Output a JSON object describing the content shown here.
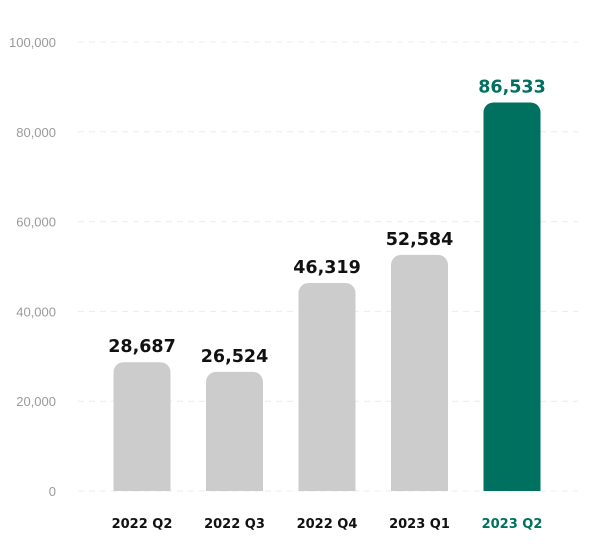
{
  "chart_data": {
    "type": "bar",
    "title": "",
    "xlabel": "",
    "ylabel": "",
    "categories": [
      "2022 Q2",
      "2022 Q3",
      "2022 Q4",
      "2023 Q1",
      "2023 Q2"
    ],
    "values": [
      28687,
      26524,
      46319,
      52584,
      86533
    ],
    "value_labels": [
      "28,687",
      "26,524",
      "46,319",
      "52,584",
      "86,533"
    ],
    "ylim": [
      0,
      100000
    ],
    "yticks": [
      0,
      20000,
      40000,
      60000,
      80000,
      100000
    ],
    "ytick_labels": [
      "0",
      "20,000",
      "40,000",
      "60,000",
      "80,000",
      "100,000"
    ],
    "grid": true,
    "legend": "none",
    "highlight_index": 4,
    "colors": {
      "bar_default": "#cccccc",
      "bar_highlight": "#00705f",
      "label_default": "#111111",
      "label_highlight": "#00705f",
      "axis_text": "#9a9a9a",
      "grid": "#ececec"
    }
  }
}
